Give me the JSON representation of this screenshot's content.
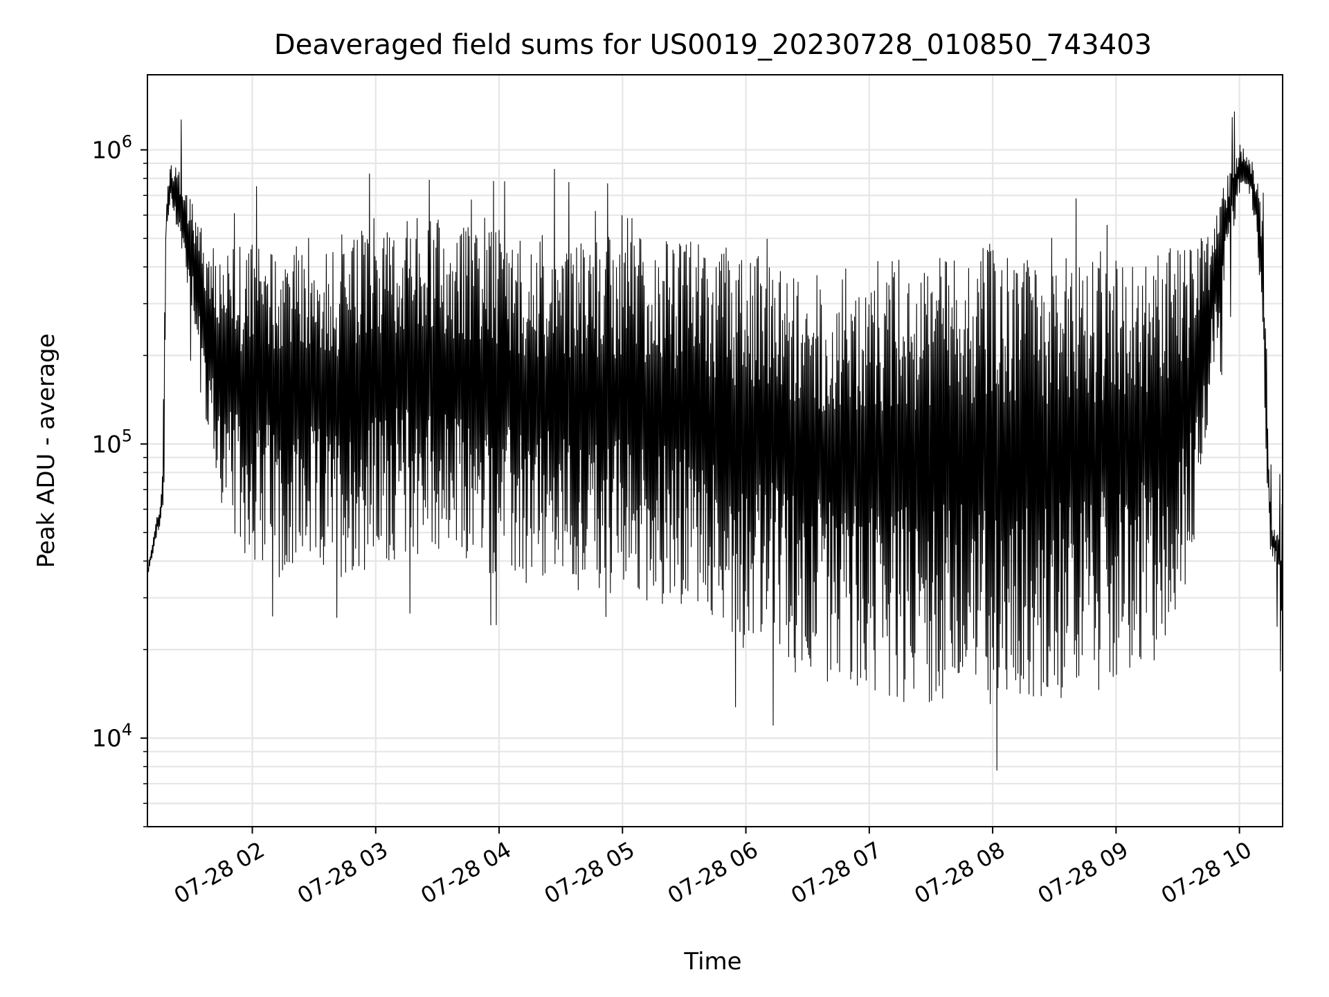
{
  "chart_data": {
    "type": "line",
    "title": "Deaveraged field sums for US0019_20230728_010850_743403",
    "xlabel": "Time",
    "ylabel": "Peak ADU - average",
    "yscale": "log",
    "ylim": [
      5000,
      1800000
    ],
    "xlim": [
      "2023-07-28 01:09",
      "2023-07-28 10:21"
    ],
    "grid": true,
    "line_color": "#000000",
    "grid_color": "#e6e6e6",
    "x_ticks": [
      {
        "t": "2023-07-28 02:00",
        "label": "07-28 02"
      },
      {
        "t": "2023-07-28 03:00",
        "label": "07-28 03"
      },
      {
        "t": "2023-07-28 04:00",
        "label": "07-28 04"
      },
      {
        "t": "2023-07-28 05:00",
        "label": "07-28 05"
      },
      {
        "t": "2023-07-28 06:00",
        "label": "07-28 06"
      },
      {
        "t": "2023-07-28 07:00",
        "label": "07-28 07"
      },
      {
        "t": "2023-07-28 08:00",
        "label": "07-28 08"
      },
      {
        "t": "2023-07-28 09:00",
        "label": "07-28 09"
      },
      {
        "t": "2023-07-28 10:00",
        "label": "07-28 10"
      }
    ],
    "y_ticks": [
      {
        "value": 10000,
        "base": "10",
        "exp": "4"
      },
      {
        "value": 100000,
        "base": "10",
        "exp": "5"
      },
      {
        "value": 1000000,
        "base": "10",
        "exp": "6"
      }
    ],
    "series": [
      {
        "x": [
          "2023-07-28 01:09",
          "2023-07-28 01:11",
          "2023-07-28 01:13",
          "2023-07-28 01:15",
          "2023-07-28 01:17",
          "2023-07-28 01:18",
          "2023-07-28 01:20",
          "2023-07-28 01:22",
          "2023-07-28 01:24",
          "2023-07-28 01:26",
          "2023-07-28 01:28",
          "2023-07-28 01:30",
          "2023-07-28 01:32",
          "2023-07-28 01:34",
          "2023-07-28 01:36",
          "2023-07-28 01:38",
          "2023-07-28 01:40",
          "2023-07-28 01:42",
          "2023-07-28 01:45",
          "2023-07-28 01:48",
          "2023-07-28 01:51",
          "2023-07-28 01:55",
          "2023-07-28 02:00",
          "2023-07-28 02:10",
          "2023-07-28 02:20",
          "2023-07-28 02:30",
          "2023-07-28 02:40",
          "2023-07-28 02:50",
          "2023-07-28 03:00",
          "2023-07-28 03:10",
          "2023-07-28 03:20",
          "2023-07-28 03:30",
          "2023-07-28 03:40",
          "2023-07-28 03:50",
          "2023-07-28 04:00",
          "2023-07-28 04:20",
          "2023-07-28 04:40",
          "2023-07-28 05:00",
          "2023-07-28 05:20",
          "2023-07-28 05:40",
          "2023-07-28 06:00",
          "2023-07-28 06:20",
          "2023-07-28 06:40",
          "2023-07-28 07:00",
          "2023-07-28 07:20",
          "2023-07-28 07:40",
          "2023-07-28 08:00",
          "2023-07-28 08:20",
          "2023-07-28 08:40",
          "2023-07-28 09:00",
          "2023-07-28 09:20",
          "2023-07-28 09:35",
          "2023-07-28 09:45",
          "2023-07-28 09:50",
          "2023-07-28 09:55",
          "2023-07-28 10:00",
          "2023-07-28 10:05",
          "2023-07-28 10:08",
          "2023-07-28 10:11",
          "2023-07-28 10:13",
          "2023-07-28 10:15",
          "2023-07-28 10:17",
          "2023-07-28 10:19",
          "2023-07-28 10:21"
        ],
        "upper": [
          38000,
          45000,
          56000,
          62000,
          95000,
          650000,
          880000,
          900000,
          850000,
          800000,
          750000,
          700000,
          650000,
          600000,
          550000,
          500000,
          480000,
          460000,
          450000,
          450000,
          480000,
          480000,
          480000,
          500000,
          520000,
          500000,
          480000,
          500000,
          550000,
          620000,
          600000,
          580000,
          560000,
          550000,
          540000,
          520000,
          520000,
          510000,
          500000,
          480000,
          450000,
          420000,
          400000,
          420000,
          450000,
          470000,
          480000,
          480000,
          470000,
          460000,
          460000,
          480000,
          520000,
          650000,
          880000,
          1050000,
          950000,
          850000,
          600000,
          250000,
          55000,
          52000,
          50000,
          48000
        ],
        "lower": [
          34000,
          40000,
          47000,
          50000,
          60000,
          480000,
          620000,
          600000,
          500000,
          420000,
          350000,
          300000,
          250000,
          200000,
          150000,
          110000,
          90000,
          70000,
          60000,
          50000,
          45000,
          42000,
          40000,
          38000,
          36000,
          35000,
          35000,
          36000,
          38000,
          40000,
          42000,
          40000,
          38000,
          36000,
          34000,
          32000,
          30000,
          30000,
          28000,
          24000,
          20000,
          17000,
          15000,
          14000,
          13000,
          13000,
          12500,
          13000,
          14000,
          15000,
          18000,
          30000,
          120000,
          250000,
          450000,
          700000,
          700000,
          500000,
          300000,
          80000,
          42000,
          40000,
          38000,
          20000
        ]
      }
    ]
  }
}
